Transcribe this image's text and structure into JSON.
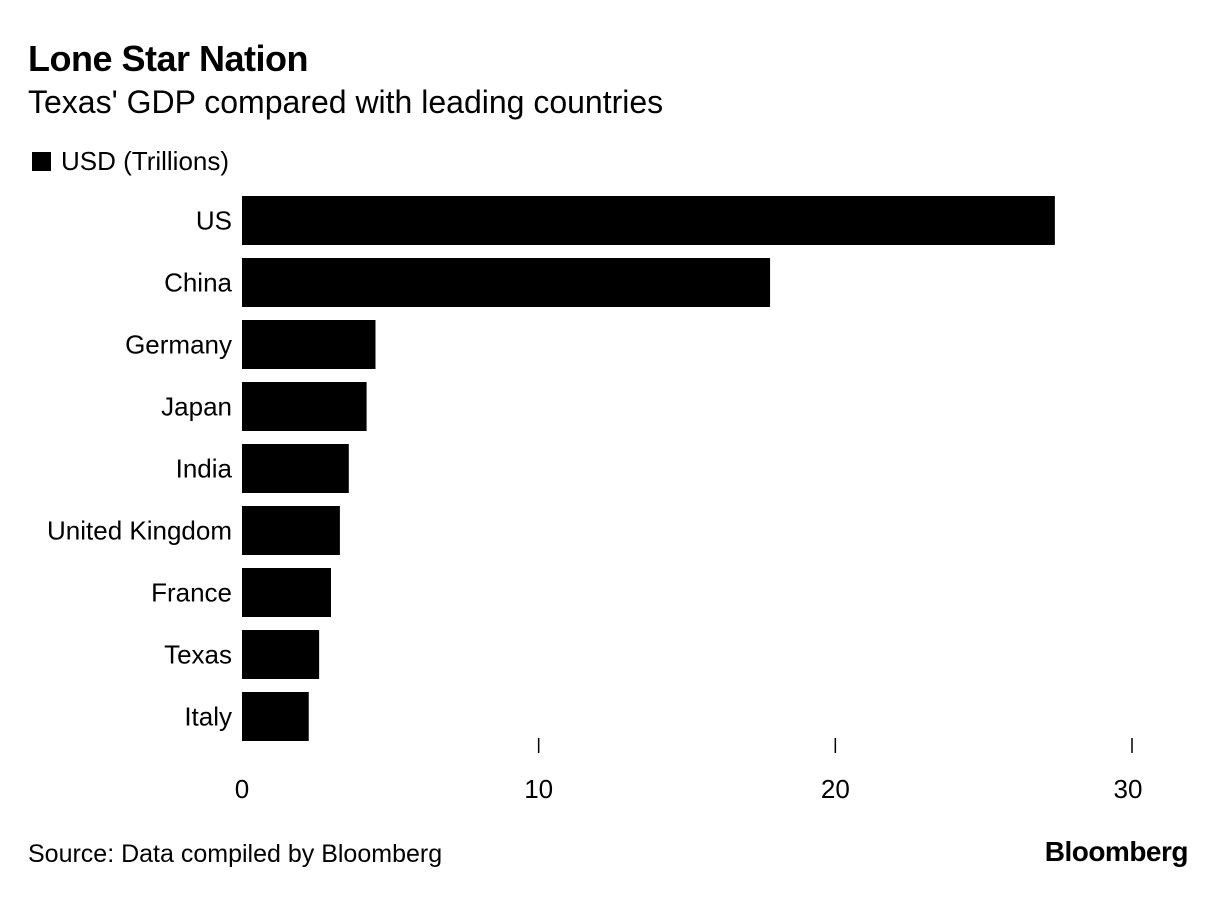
{
  "header": {
    "title": "Lone Star Nation",
    "subtitle": "Texas' GDP compared with leading countries"
  },
  "legend": {
    "label": "USD (Trillions)"
  },
  "footer": {
    "source": "Source: Data compiled by Bloomberg",
    "brand": "Bloomberg"
  },
  "colors": {
    "bar": "#000000",
    "background": "#ffffff"
  },
  "chart_data": {
    "type": "bar",
    "orientation": "horizontal",
    "title": "Lone Star Nation",
    "subtitle": "Texas' GDP compared with leading countries",
    "categories": [
      "US",
      "China",
      "Germany",
      "Japan",
      "India",
      "United Kingdom",
      "France",
      "Texas",
      "Italy"
    ],
    "series": [
      {
        "name": "USD (Trillions)",
        "values": [
          27.4,
          17.8,
          4.5,
          4.2,
          3.6,
          3.3,
          3.0,
          2.6,
          2.25
        ]
      }
    ],
    "xlim": [
      0,
      30
    ],
    "xticks": [
      0,
      10,
      20,
      30
    ],
    "xlabel": "",
    "ylabel": "",
    "grid": false,
    "legend_position": "top-left"
  }
}
